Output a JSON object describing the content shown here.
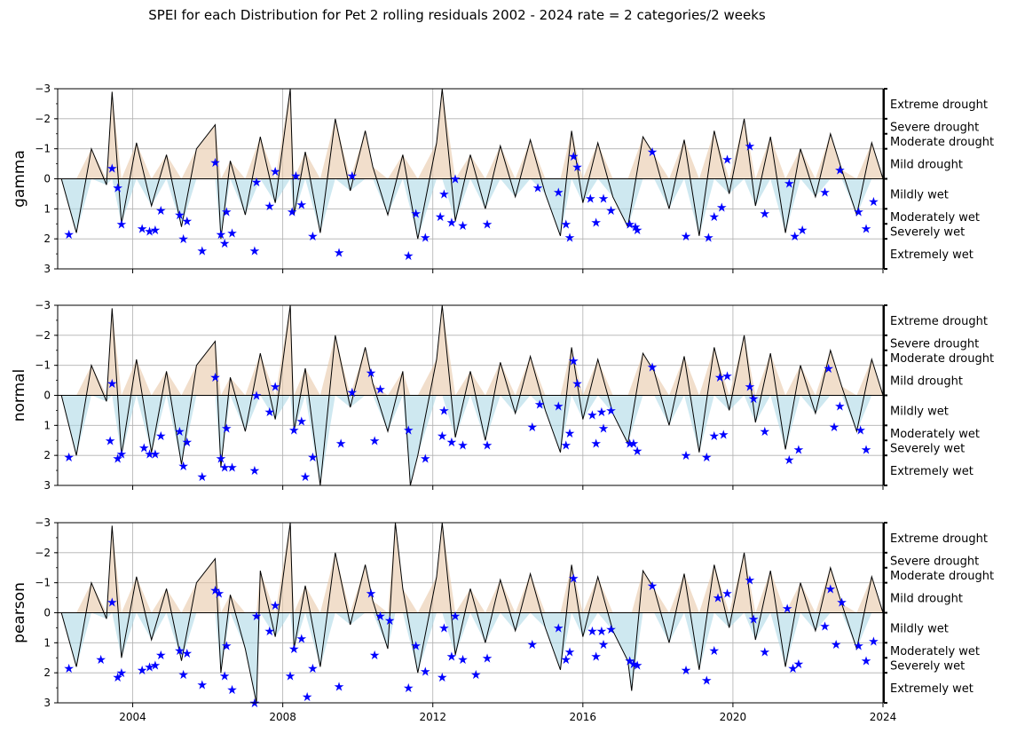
{
  "chart_data": {
    "type": "line",
    "title": "SPEI for each Distribution for Pet 2 rolling residuals 2002 - 2024 rate = 2 categories/2 weeks",
    "x_range": [
      "2002-01-01",
      "2024-01-01"
    ],
    "x_ticks": [
      "2004",
      "2008",
      "2012",
      "2016",
      "2020",
      "2024"
    ],
    "ylim": [
      3,
      -3
    ],
    "y_ticks": [
      "−3",
      "−2",
      "−1",
      "0",
      "1",
      "2",
      "3"
    ],
    "grid": true,
    "categories": [
      {
        "label": "Extreme drought",
        "lo": -3.0,
        "hi": -2.0
      },
      {
        "label": "Severe drought",
        "lo": -2.0,
        "hi": -1.5
      },
      {
        "label": "Moderate drought",
        "lo": -1.5,
        "hi": -1.0
      },
      {
        "label": "Mild drought",
        "lo": -1.0,
        "hi": 0.0
      },
      {
        "label": "Mildly wet",
        "lo": 0.0,
        "hi": 1.0
      },
      {
        "label": "Moderately wet",
        "lo": 1.0,
        "hi": 1.5
      },
      {
        "label": "Severely wet",
        "lo": 1.5,
        "hi": 2.0
      },
      {
        "label": "Extremely wet",
        "lo": 2.0,
        "hi": 3.0
      }
    ],
    "panels": [
      {
        "ylabel": "gamma",
        "series": [
          {
            "x": [
              2002.1,
              2002.5,
              2002.9,
              2003.3,
              2003.45,
              2003.7,
              2004.1,
              2004.5,
              2004.9,
              2005.3,
              2005.7,
              2006.2,
              2006.35,
              2006.6,
              2007.0,
              2007.4,
              2007.8,
              2008.2,
              2008.3,
              2008.6,
              2009.0,
              2009.4,
              2009.8,
              2010.2,
              2010.4,
              2010.8,
              2011.2,
              2011.6,
              2012.1,
              2012.25,
              2012.6,
              2013.0,
              2013.4,
              2013.8,
              2014.2,
              2014.6,
              2015.0,
              2015.4,
              2015.7,
              2016.0,
              2016.4,
              2016.8,
              2017.2,
              2017.6,
              2017.9,
              2018.3,
              2018.7,
              2019.1,
              2019.5,
              2019.9,
              2020.3,
              2020.6,
              2021.0,
              2021.4,
              2021.8,
              2022.2,
              2022.6,
              2022.9,
              2023.3,
              2023.7,
              2024.0
            ],
            "y": [
              0.0,
              1.8,
              -1.0,
              0.2,
              -2.9,
              1.5,
              -1.2,
              0.9,
              -0.8,
              1.6,
              -1.0,
              -1.8,
              2.0,
              -0.6,
              1.2,
              -1.4,
              0.8,
              -3.0,
              1.2,
              -0.9,
              1.8,
              -2.0,
              0.4,
              -1.6,
              -0.4,
              1.2,
              -0.8,
              2.0,
              -1.2,
              -3.0,
              1.4,
              -0.8,
              1.0,
              -1.1,
              0.6,
              -1.3,
              0.5,
              1.9,
              -1.6,
              0.8,
              -1.2,
              0.6,
              1.6,
              -1.4,
              -0.8,
              1.0,
              -1.3,
              1.9,
              -1.6,
              0.5,
              -2.0,
              0.9,
              -1.4,
              1.8,
              -1.0,
              0.6,
              -1.5,
              -0.3,
              1.2,
              -1.2,
              0.0
            ]
          },
          {
            "name": "markers",
            "x": [
              2002.3,
              2003.45,
              2003.6,
              2003.7,
              2004.25,
              2004.45,
              2004.6,
              2004.75,
              2005.25,
              2005.35,
              2005.45,
              2005.85,
              2006.2,
              2006.35,
              2006.45,
              2006.5,
              2006.65,
              2007.25,
              2007.3,
              2007.65,
              2007.8,
              2008.25,
              2008.35,
              2008.5,
              2008.8,
              2009.5,
              2009.85,
              2011.35,
              2011.55,
              2011.8,
              2012.2,
              2012.3,
              2012.5,
              2012.6,
              2012.8,
              2013.45,
              2014.8,
              2015.35,
              2015.55,
              2015.65,
              2015.75,
              2015.85,
              2016.2,
              2016.35,
              2016.55,
              2016.75,
              2017.25,
              2017.4,
              2017.45,
              2017.85,
              2018.75,
              2019.35,
              2019.5,
              2019.7,
              2019.85,
              2020.45,
              2020.85,
              2021.5,
              2021.65,
              2021.85,
              2022.45,
              2022.85,
              2023.35,
              2023.55,
              2023.75
            ],
            "y": [
              1.85,
              -0.35,
              0.3,
              1.5,
              1.65,
              1.75,
              1.7,
              1.05,
              1.2,
              2.0,
              1.4,
              2.4,
              -0.55,
              1.85,
              2.15,
              1.1,
              1.8,
              2.4,
              0.1,
              0.9,
              -0.25,
              1.1,
              -0.1,
              0.85,
              1.9,
              2.45,
              -0.1,
              2.55,
              1.15,
              1.95,
              1.25,
              0.5,
              1.45,
              0.0,
              1.55,
              1.5,
              0.3,
              0.45,
              1.5,
              1.95,
              -0.75,
              -0.4,
              0.65,
              1.45,
              0.65,
              1.05,
              1.5,
              1.6,
              1.7,
              -0.9,
              1.9,
              1.95,
              1.25,
              0.95,
              -0.65,
              -1.1,
              1.15,
              0.15,
              1.9,
              1.7,
              0.45,
              -0.3,
              1.1,
              1.65,
              0.75
            ]
          }
        ]
      },
      {
        "ylabel": "normal",
        "series": [
          {
            "x": [
              2002.1,
              2002.5,
              2002.9,
              2003.3,
              2003.45,
              2003.7,
              2004.1,
              2004.5,
              2004.9,
              2005.3,
              2005.7,
              2006.2,
              2006.35,
              2006.6,
              2007.0,
              2007.4,
              2007.8,
              2008.2,
              2008.3,
              2008.6,
              2009.0,
              2009.4,
              2009.8,
              2010.2,
              2010.4,
              2010.8,
              2011.2,
              2011.4,
              2011.6,
              2012.1,
              2012.25,
              2012.6,
              2013.0,
              2013.4,
              2013.8,
              2014.2,
              2014.6,
              2015.0,
              2015.4,
              2015.7,
              2016.0,
              2016.4,
              2016.8,
              2017.2,
              2017.6,
              2017.9,
              2018.3,
              2018.7,
              2019.1,
              2019.5,
              2019.9,
              2020.3,
              2020.6,
              2021.0,
              2021.4,
              2021.8,
              2022.2,
              2022.6,
              2022.9,
              2023.3,
              2023.7,
              2024.0
            ],
            "y": [
              0.0,
              2.0,
              -1.0,
              0.2,
              -2.9,
              2.0,
              -1.2,
              1.9,
              -0.8,
              2.3,
              -1.0,
              -1.8,
              2.4,
              -0.6,
              1.2,
              -1.4,
              0.8,
              -3.0,
              1.2,
              -0.9,
              3.0,
              -2.0,
              0.4,
              -1.6,
              -0.4,
              1.2,
              -0.8,
              3.0,
              2.0,
              -1.2,
              -3.0,
              1.4,
              -0.8,
              1.5,
              -1.1,
              0.6,
              -1.3,
              0.5,
              1.9,
              -1.6,
              0.8,
              -1.2,
              0.6,
              1.6,
              -1.4,
              -0.8,
              1.0,
              -1.3,
              1.9,
              -1.6,
              0.5,
              -2.0,
              0.9,
              -1.4,
              1.8,
              -1.0,
              0.6,
              -1.5,
              -0.3,
              1.2,
              -1.2,
              0.0
            ]
          },
          {
            "name": "markers",
            "x": [
              2002.3,
              2003.4,
              2003.45,
              2003.6,
              2003.7,
              2004.3,
              2004.45,
              2004.6,
              2004.75,
              2005.25,
              2005.35,
              2005.45,
              2005.85,
              2006.2,
              2006.35,
              2006.45,
              2006.5,
              2006.65,
              2007.25,
              2007.3,
              2007.65,
              2007.8,
              2008.3,
              2008.5,
              2008.6,
              2008.8,
              2009.55,
              2009.85,
              2010.35,
              2010.45,
              2010.6,
              2011.35,
              2011.8,
              2012.25,
              2012.3,
              2012.5,
              2012.8,
              2013.45,
              2014.65,
              2014.85,
              2015.35,
              2015.55,
              2015.65,
              2015.75,
              2015.85,
              2016.25,
              2016.35,
              2016.5,
              2016.55,
              2016.75,
              2017.25,
              2017.35,
              2017.45,
              2017.85,
              2018.75,
              2019.3,
              2019.5,
              2019.65,
              2019.75,
              2019.85,
              2020.45,
              2020.55,
              2020.85,
              2021.5,
              2021.75,
              2022.55,
              2022.7,
              2022.85,
              2023.4,
              2023.55
            ],
            "y": [
              2.05,
              1.5,
              -0.4,
              2.1,
              1.95,
              1.75,
              1.95,
              1.95,
              1.35,
              1.2,
              2.35,
              1.55,
              2.7,
              -0.6,
              2.1,
              2.4,
              1.1,
              2.4,
              2.5,
              0.0,
              0.55,
              -0.3,
              1.15,
              0.85,
              2.7,
              2.05,
              1.6,
              -0.1,
              -0.75,
              1.5,
              -0.2,
              1.15,
              2.1,
              1.35,
              0.5,
              1.55,
              1.65,
              1.65,
              1.05,
              0.3,
              0.35,
              1.65,
              1.25,
              -1.15,
              -0.4,
              0.65,
              1.6,
              0.55,
              1.1,
              0.5,
              1.6,
              1.6,
              1.85,
              -0.95,
              2.0,
              2.05,
              1.35,
              -0.6,
              1.3,
              -0.65,
              -0.3,
              0.1,
              1.2,
              2.15,
              1.8,
              -0.9,
              1.05,
              0.35,
              1.15,
              1.8
            ]
          }
        ]
      },
      {
        "ylabel": "pearson",
        "series": [
          {
            "x": [
              2002.1,
              2002.5,
              2002.9,
              2003.3,
              2003.45,
              2003.7,
              2004.1,
              2004.5,
              2004.9,
              2005.3,
              2005.7,
              2006.2,
              2006.35,
              2006.6,
              2007.0,
              2007.3,
              2007.4,
              2007.8,
              2008.2,
              2008.3,
              2008.6,
              2009.0,
              2009.4,
              2009.8,
              2010.2,
              2010.4,
              2010.8,
              2011.0,
              2011.2,
              2011.6,
              2012.1,
              2012.25,
              2012.6,
              2013.0,
              2013.4,
              2013.8,
              2014.2,
              2014.6,
              2015.0,
              2015.4,
              2015.7,
              2016.0,
              2016.4,
              2016.8,
              2017.2,
              2017.3,
              2017.6,
              2017.9,
              2018.3,
              2018.7,
              2019.1,
              2019.5,
              2019.9,
              2020.3,
              2020.6,
              2021.0,
              2021.4,
              2021.8,
              2022.2,
              2022.6,
              2022.9,
              2023.3,
              2023.7,
              2024.0
            ],
            "y": [
              0.0,
              1.8,
              -1.0,
              0.2,
              -2.9,
              1.5,
              -1.2,
              0.9,
              -0.8,
              1.6,
              -1.0,
              -1.8,
              2.0,
              -0.6,
              1.2,
              3.0,
              -1.4,
              0.8,
              -3.0,
              1.2,
              -0.9,
              1.8,
              -2.0,
              0.4,
              -1.6,
              -0.4,
              1.2,
              -3.0,
              -0.8,
              2.0,
              -1.2,
              -3.0,
              1.4,
              -0.8,
              1.0,
              -1.1,
              0.6,
              -1.3,
              0.5,
              1.9,
              -1.6,
              0.8,
              -1.2,
              0.6,
              1.6,
              2.6,
              -1.4,
              -0.8,
              1.0,
              -1.3,
              1.9,
              -1.6,
              0.5,
              -2.0,
              0.9,
              -1.4,
              1.8,
              -1.0,
              0.6,
              -1.5,
              -0.3,
              1.2,
              -1.2,
              0.0
            ]
          },
          {
            "name": "markers",
            "x": [
              2002.3,
              2003.15,
              2003.45,
              2003.6,
              2003.7,
              2004.25,
              2004.45,
              2004.6,
              2004.75,
              2005.25,
              2005.35,
              2005.45,
              2005.85,
              2006.2,
              2006.3,
              2006.45,
              2006.5,
              2006.65,
              2007.25,
              2007.3,
              2007.65,
              2007.8,
              2008.2,
              2008.3,
              2008.5,
              2008.65,
              2008.8,
              2009.5,
              2010.35,
              2010.45,
              2010.6,
              2010.85,
              2011.35,
              2011.55,
              2011.8,
              2012.25,
              2012.3,
              2012.5,
              2012.6,
              2012.8,
              2013.15,
              2013.45,
              2014.65,
              2015.35,
              2015.55,
              2015.65,
              2015.75,
              2016.25,
              2016.35,
              2016.5,
              2016.55,
              2016.75,
              2017.25,
              2017.35,
              2017.45,
              2017.85,
              2018.75,
              2019.3,
              2019.5,
              2019.6,
              2019.85,
              2020.45,
              2020.55,
              2020.85,
              2021.45,
              2021.6,
              2021.75,
              2022.45,
              2022.6,
              2022.75,
              2022.9,
              2023.35,
              2023.55,
              2023.75
            ],
            "y": [
              1.85,
              1.55,
              -0.35,
              2.15,
              2.0,
              1.9,
              1.8,
              1.75,
              1.4,
              1.25,
              2.05,
              1.35,
              2.4,
              -0.75,
              -0.65,
              2.1,
              1.1,
              2.55,
              3.0,
              0.1,
              0.6,
              -0.25,
              2.1,
              1.2,
              0.85,
              2.8,
              1.85,
              2.45,
              -0.65,
              1.4,
              0.1,
              0.25,
              2.5,
              1.1,
              1.95,
              2.15,
              0.5,
              1.45,
              0.1,
              1.55,
              2.05,
              1.5,
              1.05,
              0.5,
              1.55,
              1.3,
              -1.15,
              0.6,
              1.45,
              0.6,
              1.05,
              0.55,
              1.6,
              1.7,
              1.75,
              -0.9,
              1.9,
              2.25,
              1.25,
              -0.5,
              -0.65,
              -1.1,
              0.2,
              1.3,
              -0.15,
              1.85,
              1.7,
              0.45,
              -0.8,
              1.05,
              -0.35,
              1.1,
              1.6,
              0.95
            ]
          }
        ]
      }
    ]
  }
}
